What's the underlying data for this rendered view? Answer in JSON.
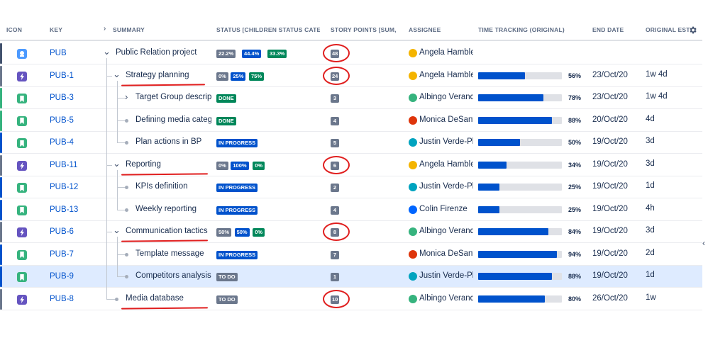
{
  "header": {
    "icon": "ICON",
    "key": "KEY",
    "summary": "SUMMARY",
    "status": "STATUS [CHILDREN STATUS CATEGOR",
    "story_points": "STORY POINTS [SUM, WI",
    "assignee": "ASSIGNEE",
    "time_tracking": "TIME TRACKING (ORIGINAL)",
    "end_date": "END DATE",
    "original_est": "ORIGINAL EST",
    "settings_icon": "gear-icon",
    "expand_icon": "chevron-right-icon"
  },
  "rows": [
    {
      "type": "project",
      "key": "PUB",
      "summary": "Public Relation project",
      "status": [
        "22.2%",
        "44.4%",
        "33.3%"
      ],
      "sp": "48",
      "assignee": "Angela Hamblet",
      "avatar": "#f4b400",
      "tt_pct": "",
      "tt_frac": null,
      "end": "",
      "est": ""
    },
    {
      "type": "epic",
      "key": "PUB-1",
      "summary": "Strategy planning",
      "status": [
        "0%",
        "25%",
        "75%"
      ],
      "sp": "24",
      "assignee": "Angela Hamblet",
      "avatar": "#f4b400",
      "tt_pct": "56%",
      "tt_frac": 0.56,
      "end": "23/Oct/20",
      "est": "1w 4d"
    },
    {
      "type": "story",
      "key": "PUB-3",
      "summary": "Target Group descripti",
      "status": [
        "DONE"
      ],
      "sp": "3",
      "assignee": "Albingo Verande",
      "avatar": "#36b37e",
      "tt_pct": "78%",
      "tt_frac": 0.78,
      "end": "23/Oct/20",
      "est": "1w 4d"
    },
    {
      "type": "story",
      "key": "PUB-5",
      "summary": "Defining media categc",
      "status": [
        "DONE"
      ],
      "sp": "4",
      "assignee": "Monica DeSanto",
      "avatar": "#de350b",
      "tt_pct": "88%",
      "tt_frac": 0.88,
      "end": "20/Oct/20",
      "est": "4d"
    },
    {
      "type": "story",
      "key": "PUB-4",
      "summary": "Plan actions in BP",
      "status": [
        "IN PROGRESS"
      ],
      "sp": "5",
      "assignee": "Justin Verde-Pla",
      "avatar": "#00a3bf",
      "tt_pct": "50%",
      "tt_frac": 0.5,
      "end": "19/Oct/20",
      "est": "3d"
    },
    {
      "type": "epic",
      "key": "PUB-11",
      "summary": "Reporting",
      "status": [
        "0%",
        "100%",
        "0%"
      ],
      "sp": "6",
      "assignee": "Angela Hamblet",
      "avatar": "#f4b400",
      "tt_pct": "34%",
      "tt_frac": 0.34,
      "end": "19/Oct/20",
      "est": "3d"
    },
    {
      "type": "story",
      "key": "PUB-12",
      "summary": "KPIs definition",
      "status": [
        "IN PROGRESS"
      ],
      "sp": "2",
      "assignee": "Justin Verde-Pla",
      "avatar": "#00a3bf",
      "tt_pct": "25%",
      "tt_frac": 0.25,
      "end": "19/Oct/20",
      "est": "1d"
    },
    {
      "type": "story",
      "key": "PUB-13",
      "summary": "Weekly reporting",
      "status": [
        "IN PROGRESS"
      ],
      "sp": "4",
      "assignee": "Colin Firenze",
      "avatar": "#0065ff",
      "tt_pct": "25%",
      "tt_frac": 0.25,
      "end": "19/Oct/20",
      "est": "4h"
    },
    {
      "type": "epic",
      "key": "PUB-6",
      "summary": "Communication tactics",
      "status": [
        "50%",
        "50%",
        "0%"
      ],
      "sp": "8",
      "assignee": "Albingo Verande",
      "avatar": "#36b37e",
      "tt_pct": "84%",
      "tt_frac": 0.84,
      "end": "19/Oct/20",
      "est": "3d"
    },
    {
      "type": "story",
      "key": "PUB-7",
      "summary": "Template message",
      "status": [
        "IN PROGRESS"
      ],
      "sp": "7",
      "assignee": "Monica DeSanto",
      "avatar": "#de350b",
      "tt_pct": "94%",
      "tt_frac": 0.94,
      "end": "19/Oct/20",
      "est": "2d"
    },
    {
      "type": "story",
      "key": "PUB-9",
      "summary": "Competitors analysis",
      "status": [
        "TO DO"
      ],
      "sp": "1",
      "assignee": "Justin Verde-Pla",
      "avatar": "#00a3bf",
      "tt_pct": "88%",
      "tt_frac": 0.88,
      "end": "19/Oct/20",
      "est": "1d",
      "selected": true
    },
    {
      "type": "epic",
      "key": "PUB-8",
      "summary": "Media database",
      "status": [
        "TO DO"
      ],
      "sp": "10",
      "assignee": "Albingo Verande",
      "avatar": "#36b37e",
      "tt_pct": "80%",
      "tt_frac": 0.8,
      "end": "26/Oct/20",
      "est": "1w"
    }
  ],
  "colors": {
    "link": "#0052cc",
    "progress": "#0052cc",
    "annotation": "#e01e1e",
    "epic_icon": "#6554c0",
    "story_icon": "#36b37e",
    "project_icon": "#4c9aff"
  }
}
